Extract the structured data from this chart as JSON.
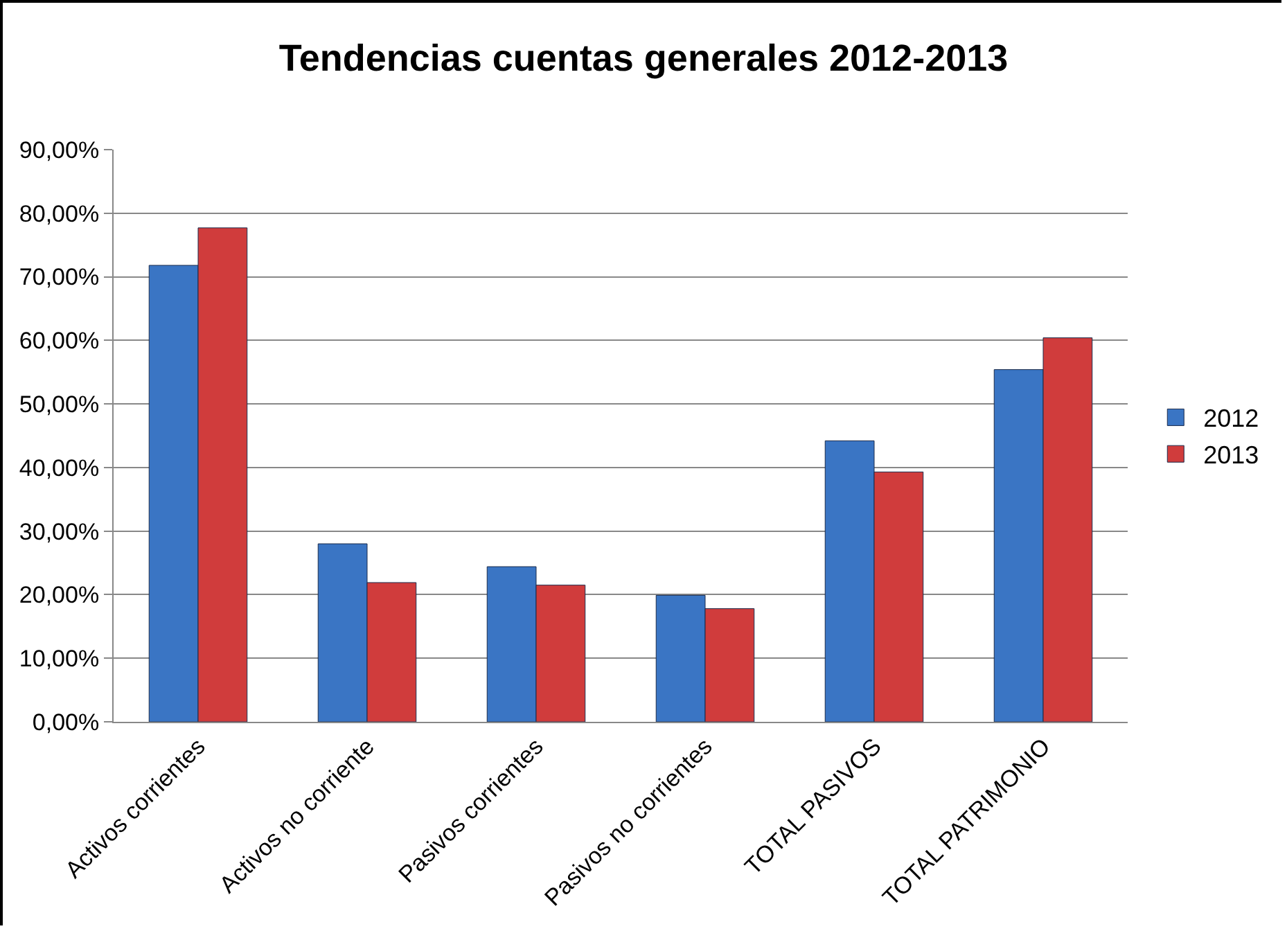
{
  "chart_data": {
    "type": "bar",
    "title": "Tendencias cuentas generales 2012-2013",
    "categories": [
      "Activos corrientes",
      "Activos no corriente",
      "Pasivos corrientes",
      "Pasivos no corrientes",
      "TOTAL PASIVOS",
      "TOTAL PATRIMONIO"
    ],
    "series": [
      {
        "name": "2012",
        "color": "#3a75c4",
        "values": [
          71.8,
          28.0,
          24.4,
          19.9,
          44.2,
          55.4
        ]
      },
      {
        "name": "2013",
        "color": "#d03c3c",
        "values": [
          77.7,
          21.9,
          21.5,
          17.8,
          39.3,
          60.4
        ]
      }
    ],
    "ylim": [
      0,
      90
    ],
    "yticks": [
      {
        "value": 0,
        "label": "0,00%"
      },
      {
        "value": 10,
        "label": "10,00%"
      },
      {
        "value": 20,
        "label": "20,00%"
      },
      {
        "value": 30,
        "label": "30,00%"
      },
      {
        "value": 40,
        "label": "40,00%"
      },
      {
        "value": 50,
        "label": "50,00%"
      },
      {
        "value": 60,
        "label": "60,00%"
      },
      {
        "value": 70,
        "label": "70,00%"
      },
      {
        "value": 80,
        "label": "80,00%"
      },
      {
        "value": 90,
        "label": "90,00%"
      }
    ],
    "grid": "y",
    "legend": "right"
  }
}
